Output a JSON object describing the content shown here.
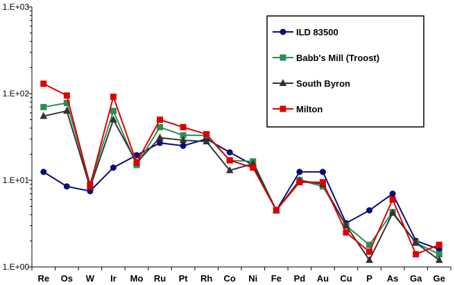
{
  "chart_data": {
    "type": "line",
    "yscale": "log",
    "ylim": [
      1,
      1000
    ],
    "yticks": [
      {
        "value": 1,
        "label": "1.E+00"
      },
      {
        "value": 10,
        "label": "1.E+01"
      },
      {
        "value": 100,
        "label": "1.E+02"
      },
      {
        "value": 1000,
        "label": "1.E+03"
      }
    ],
    "categories": [
      "Re",
      "Os",
      "W",
      "Ir",
      "Mo",
      "Ru",
      "Pt",
      "Rh",
      "Co",
      "Ni",
      "Fe",
      "Pd",
      "Au",
      "Cu",
      "P",
      "As",
      "Ga",
      "Ge"
    ],
    "title": "",
    "xlabel": "",
    "ylabel": "",
    "legend_position": "top-right",
    "series": [
      {
        "name": "ILD 83500",
        "color": "#0a0a78",
        "marker": "circle",
        "values": [
          12.5,
          8.5,
          7.5,
          14,
          19.5,
          27,
          25,
          30,
          21,
          15,
          4.5,
          12.5,
          12.5,
          3.2,
          4.5,
          7,
          2,
          1.6
        ]
      },
      {
        "name": "Babb's Mill (Troost)",
        "color": "#2e8b57",
        "marker": "square",
        "values": [
          70,
          78,
          9,
          63,
          15,
          41,
          33,
          33,
          17,
          16.5,
          4.5,
          10,
          8.5,
          3,
          1.8,
          4.3,
          1.9,
          1.4
        ]
      },
      {
        "name": "South Byron",
        "color": "#333333",
        "marker": "triangle",
        "values": [
          55,
          63,
          8.3,
          50,
          16,
          31,
          29,
          28,
          13,
          15.5,
          4.5,
          10,
          9,
          3,
          1.2,
          4.2,
          1.9,
          1.2
        ]
      },
      {
        "name": "Milton",
        "color": "#dd0000",
        "marker": "square",
        "values": [
          130,
          95,
          8.7,
          92,
          16,
          50,
          41,
          34,
          17,
          14,
          4.5,
          9.5,
          9.5,
          2.5,
          1.5,
          6,
          1.4,
          1.8
        ]
      }
    ]
  }
}
